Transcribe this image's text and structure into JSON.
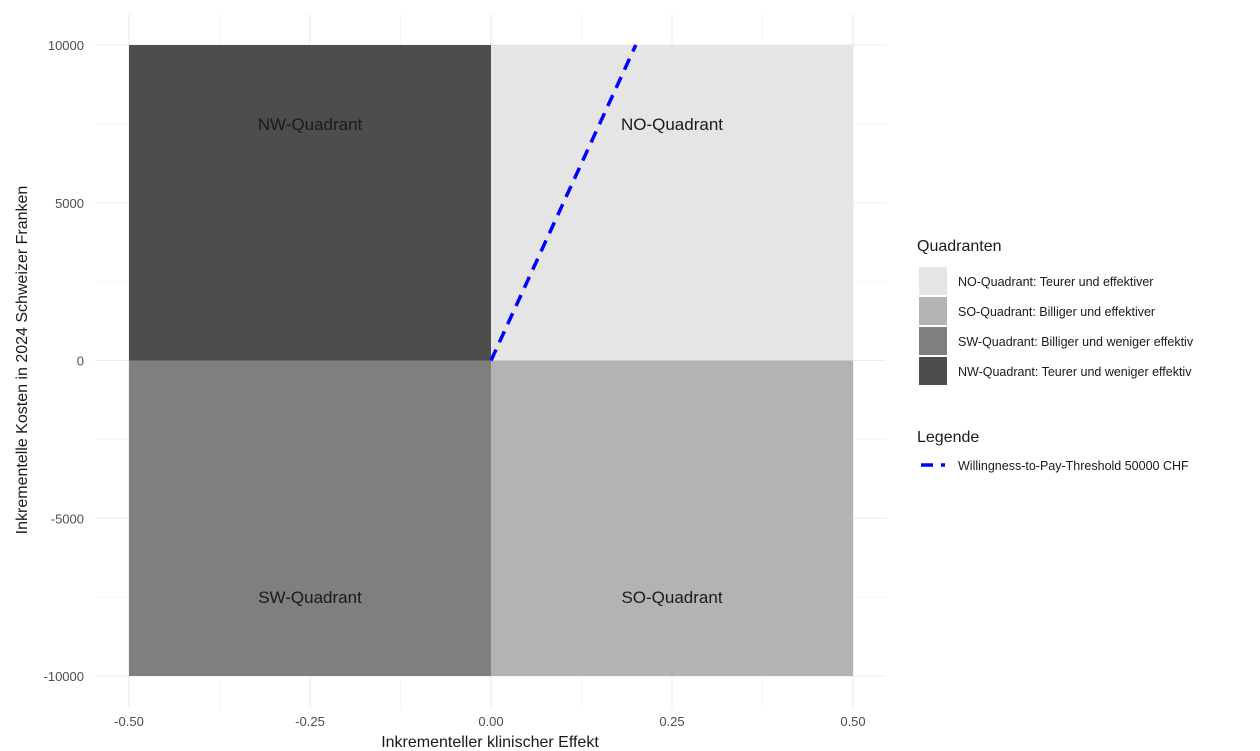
{
  "chart_data": {
    "type": "area",
    "xlabel": "Inkrementeller klinischer Effekt",
    "ylabel": "Inkrementelle Kosten in 2024 Schweizer Franken",
    "xlim": [
      -0.5,
      0.5
    ],
    "ylim": [
      -10000,
      10000
    ],
    "x_ticks": [
      -0.5,
      -0.25,
      0,
      0.25,
      0.5
    ],
    "x_tick_labels": [
      "-0.50",
      "-0.25",
      "0.00",
      "0.25",
      "0.50"
    ],
    "y_ticks": [
      -10000,
      -5000,
      0,
      5000,
      10000
    ],
    "y_tick_labels": [
      "-10000",
      "-5000",
      "0",
      "5000",
      "10000"
    ],
    "grid": true,
    "quadrants": [
      {
        "id": "no",
        "label": "NO-Quadrant",
        "x": [
          0,
          0.5
        ],
        "y": [
          0,
          10000
        ],
        "color": "#e5e5e5",
        "label_pos": [
          0.25,
          7500
        ]
      },
      {
        "id": "so",
        "label": "SO-Quadrant",
        "x": [
          0,
          0.5
        ],
        "y": [
          -10000,
          0
        ],
        "color": "#b3b3b3",
        "label_pos": [
          0.25,
          -7500
        ]
      },
      {
        "id": "sw",
        "label": "SW-Quadrant",
        "x": [
          -0.5,
          0
        ],
        "y": [
          -10000,
          0
        ],
        "color": "#7f7f7f",
        "label_pos": [
          -0.25,
          -7500
        ]
      },
      {
        "id": "nw",
        "label": "NW-Quadrant",
        "x": [
          -0.5,
          0
        ],
        "y": [
          0,
          10000
        ],
        "color": "#4d4d4d",
        "label_pos": [
          -0.25,
          7500
        ]
      }
    ],
    "threshold_line": {
      "name": "Willingness-to-Pay-Threshold 50000 CHF",
      "x": [
        0,
        0.2
      ],
      "y": [
        0,
        10000
      ],
      "color": "#0000ff",
      "style": "dashed"
    },
    "legend_placement": "right",
    "legend": {
      "quadrant_title": "Quadranten",
      "quadrant_entries": [
        {
          "label": "NO-Quadrant: Teurer und effektiver",
          "color": "#e5e5e5"
        },
        {
          "label": "SO-Quadrant: Billiger und effektiver",
          "color": "#b3b3b3"
        },
        {
          "label": "SW-Quadrant: Billiger und weniger effektiv",
          "color": "#7f7f7f"
        },
        {
          "label": "NW-Quadrant: Teurer und weniger effektiv",
          "color": "#4d4d4d"
        }
      ],
      "line_title": "Legende",
      "line_entries": [
        {
          "label": "Willingness-to-Pay-Threshold 50000 CHF",
          "color": "#0000ff"
        }
      ]
    }
  }
}
